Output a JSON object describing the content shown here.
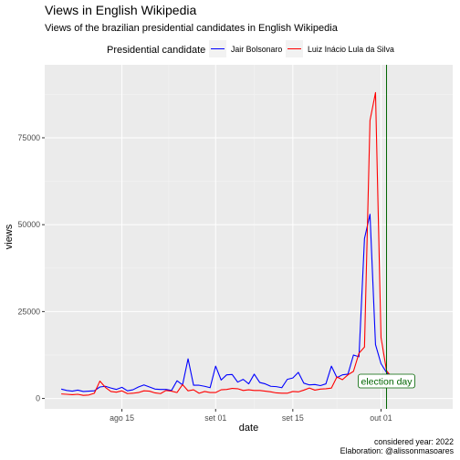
{
  "chart_data": {
    "type": "line",
    "title": "Views in English Wikipedia",
    "subtitle": "Views of the brazilian presidential candidates in English Wikipedia",
    "xlabel": "date",
    "ylabel": "views",
    "legend": {
      "title": "Presidential candidate",
      "placement": "top"
    },
    "start_date": "2022-08-04",
    "xlim": [
      "2022-08-01",
      "2022-10-14"
    ],
    "ylim": [
      -3000,
      96000
    ],
    "x_ticks": [
      {
        "date": "2022-08-15",
        "label": "ago 15"
      },
      {
        "date": "2022-09-01",
        "label": "set 01"
      },
      {
        "date": "2022-09-15",
        "label": "set 15"
      },
      {
        "date": "2022-10-01",
        "label": "out 01"
      }
    ],
    "y_ticks": [
      {
        "value": 0,
        "label": "0"
      },
      {
        "value": 25000,
        "label": "25000"
      },
      {
        "value": 50000,
        "label": "50000"
      },
      {
        "value": 75000,
        "label": "75000"
      }
    ],
    "grid": true,
    "series": [
      {
        "name": "Jair Bolsonaro",
        "color": "#0000ff",
        "values": [
          2700,
          2300,
          2100,
          2400,
          2000,
          2100,
          2200,
          3300,
          3500,
          3000,
          2600,
          3200,
          2200,
          2500,
          3300,
          3900,
          3300,
          2700,
          2600,
          2600,
          2300,
          5100,
          3900,
          11400,
          3800,
          3800,
          3500,
          3100,
          9300,
          5300,
          6800,
          6900,
          4700,
          5500,
          4200,
          7000,
          4600,
          4200,
          3500,
          3400,
          3100,
          5500,
          5900,
          7500,
          4400,
          3900,
          4000,
          3700,
          4200,
          9300,
          6000,
          6800,
          7000,
          12500,
          12000,
          46000,
          53000,
          15500,
          10000,
          7500,
          5500
        ]
      },
      {
        "name": "Luiz Inácio Lula da Silva",
        "color": "#ff0000",
        "values": [
          1300,
          1200,
          1100,
          1200,
          900,
          1000,
          1500,
          5000,
          3200,
          2000,
          1800,
          2200,
          1400,
          1500,
          1700,
          2200,
          2100,
          1600,
          1400,
          2300,
          2100,
          1700,
          4000,
          2200,
          2500,
          1500,
          2000,
          1700,
          1700,
          2500,
          2600,
          2900,
          2800,
          2300,
          2500,
          2300,
          2300,
          2100,
          1900,
          1600,
          1500,
          1500,
          2000,
          1900,
          2400,
          3000,
          2400,
          2700,
          2800,
          3000,
          6200,
          5400,
          6800,
          7800,
          13000,
          14800,
          80000,
          88000,
          17500,
          8000,
          6000
        ]
      }
    ],
    "annotations": [
      {
        "type": "vline",
        "date": "2022-10-02",
        "color": "#006400"
      },
      {
        "type": "label",
        "text": "election day",
        "date": "2022-10-02",
        "y": 5000,
        "color": "#006400"
      }
    ]
  },
  "caption": [
    "considered year: 2022",
    "Elaboration: @alissonmasoares"
  ]
}
